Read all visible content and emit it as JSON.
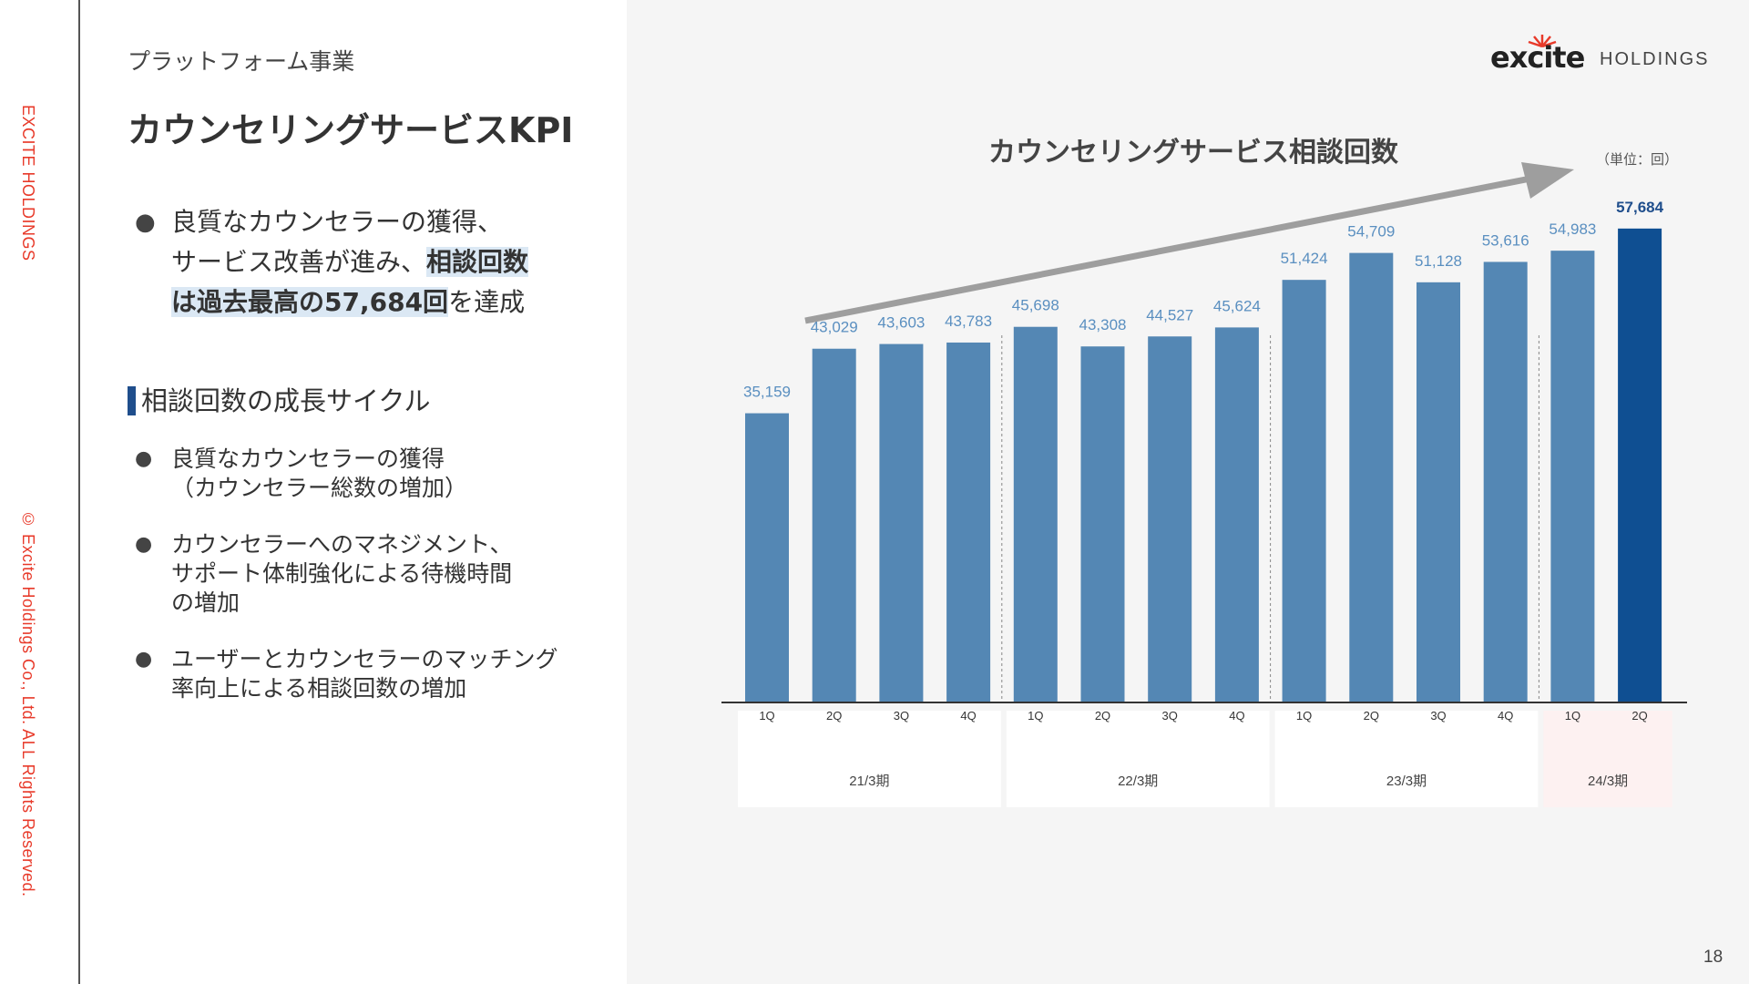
{
  "side": {
    "brand": "EXCITE HOLDINGS",
    "copyright": "© Excite Holdings Co., Ltd. ALL Rights Reserved."
  },
  "header": {
    "category": "プラットフォーム事業",
    "title": "カウンセリングサービスKPI"
  },
  "lead": {
    "line1": "良質なカウンセラーの獲得、",
    "line2_plain": "サービス改善が進み、",
    "line2_highlight": "相談回数",
    "line3_highlight": "は過去最高の57,684回",
    "line3_plain": "を達成"
  },
  "cycle": {
    "heading": "相談回数の成長サイクル",
    "items": [
      {
        "lines": [
          "良質なカウンセラーの獲得",
          "（カウンセラー総数の増加）"
        ]
      },
      {
        "lines": [
          "カウンセラーへのマネジメント、",
          "サポート体制強化による待機時間",
          "の増加"
        ]
      },
      {
        "lines": [
          "ユーザーとカウンセラーのマッチング",
          "率向上による相談回数の増加"
        ]
      }
    ]
  },
  "logo": {
    "main": "excite",
    "sub": "HOLDINGS"
  },
  "page_number": "18",
  "bullet_glyph": "●",
  "chart_data": {
    "type": "bar",
    "title": "カウンセリングサービス相談回数",
    "unit": "（単位：回）",
    "categories": [
      "1Q",
      "2Q",
      "3Q",
      "4Q",
      "1Q",
      "2Q",
      "3Q",
      "4Q",
      "1Q",
      "2Q",
      "3Q",
      "4Q",
      "1Q",
      "2Q"
    ],
    "values": [
      35159,
      43029,
      43603,
      43783,
      45698,
      43308,
      44527,
      45624,
      51424,
      54709,
      51128,
      53616,
      54983,
      57684
    ],
    "value_labels": [
      "35,159",
      "43,029",
      "43,603",
      "43,783",
      "45,698",
      "43,308",
      "44,527",
      "45,624",
      "51,424",
      "54,709",
      "51,128",
      "53,616",
      "54,983",
      "57,684"
    ],
    "periods": [
      {
        "label": "21/3期",
        "count": 4
      },
      {
        "label": "22/3期",
        "count": 4
      },
      {
        "label": "23/3期",
        "count": 4
      },
      {
        "label": "24/3期",
        "count": 2,
        "highlight": true
      }
    ],
    "ylim": [
      0,
      60000
    ],
    "highlight_index": 13,
    "colors": {
      "bar": "#5487b4",
      "bar_highlight": "#0f4f92",
      "label": "#5a8fc0",
      "label_highlight": "#1f4e8c",
      "arrow": "#9e9e9e",
      "period_bg": "#ffffff",
      "period_bg_highlight": "#fdf1f1"
    },
    "trend_arrow": true,
    "grid": false
  }
}
